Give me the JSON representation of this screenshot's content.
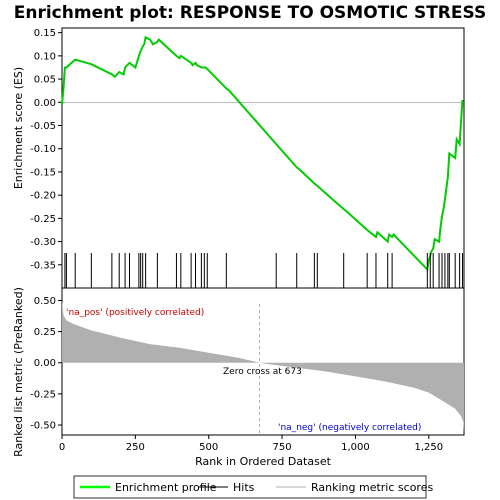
{
  "chart_data": {
    "type": "line",
    "title": "Enrichment plot: RESPONSE TO OSMOTIC STRESS",
    "xlabel": "Rank in Ordered Dataset",
    "es_panel": {
      "ylabel": "Enrichment score (ES)",
      "ylim": [
        -0.4,
        0.16
      ],
      "yticks": [
        0.15,
        0.1,
        0.05,
        0.0,
        -0.05,
        -0.1,
        -0.15,
        -0.2,
        -0.25,
        -0.3,
        -0.35
      ],
      "ytick_labels": [
        "0.15",
        "0.10",
        "0.05",
        "0.00",
        "-0.05",
        "-0.10",
        "-0.15",
        "-0.20",
        "-0.25",
        "-0.30",
        "-0.35"
      ],
      "line_color": "#00cc00",
      "series": [
        {
          "name": "Enrichment profile",
          "x": [
            0,
            5,
            10,
            15,
            45,
            100,
            170,
            180,
            195,
            210,
            215,
            230,
            250,
            262,
            268,
            275,
            280,
            285,
            300,
            310,
            325,
            330,
            390,
            400,
            405,
            410,
            440,
            445,
            455,
            460,
            475,
            485,
            490,
            495,
            560,
            570,
            730,
            800,
            810,
            860,
            870,
            960,
            970,
            1040,
            1050,
            1070,
            1075,
            1110,
            1115,
            1125,
            1130,
            1245,
            1250,
            1255,
            1260,
            1265,
            1270,
            1285,
            1290,
            1295,
            1300,
            1305,
            1310,
            1315,
            1320,
            1340,
            1345,
            1355,
            1360,
            1365
          ],
          "y": [
            -0.005,
            0.03,
            0.075,
            0.075,
            0.092,
            0.082,
            0.06,
            0.055,
            0.065,
            0.06,
            0.075,
            0.085,
            0.075,
            0.1,
            0.11,
            0.12,
            0.125,
            0.14,
            0.135,
            0.125,
            0.13,
            0.135,
            0.1,
            0.095,
            0.1,
            0.098,
            0.085,
            0.08,
            0.085,
            0.08,
            0.075,
            0.075,
            0.075,
            0.072,
            0.03,
            0.025,
            -0.09,
            -0.14,
            -0.145,
            -0.175,
            -0.18,
            -0.23,
            -0.235,
            -0.275,
            -0.28,
            -0.29,
            -0.28,
            -0.3,
            -0.285,
            -0.29,
            -0.285,
            -0.36,
            -0.34,
            -0.33,
            -0.32,
            -0.315,
            -0.295,
            -0.3,
            -0.27,
            -0.245,
            -0.23,
            -0.21,
            -0.185,
            -0.16,
            -0.11,
            -0.12,
            -0.08,
            -0.09,
            -0.04,
            0.005
          ]
        }
      ]
    },
    "hits": {
      "name": "Hits",
      "x": [
        10,
        15,
        45,
        100,
        170,
        195,
        215,
        230,
        262,
        268,
        275,
        285,
        325,
        390,
        405,
        440,
        455,
        475,
        485,
        495,
        560,
        730,
        800,
        860,
        870,
        960,
        1040,
        1070,
        1110,
        1125,
        1245,
        1255,
        1265,
        1285,
        1295,
        1305,
        1315,
        1320,
        1340,
        1355,
        1365
      ]
    },
    "metric_panel": {
      "ylabel": "Ranked list metric (PreRanked)",
      "ylim": [
        -0.58,
        0.6
      ],
      "yticks": [
        0.5,
        0.25,
        0.0,
        -0.25,
        -0.5
      ],
      "ytick_labels": [
        "0.50",
        "0.25",
        "0.00",
        "-0.25",
        "-0.50"
      ],
      "fill_color": "#b0b0b0",
      "profile": {
        "x": [
          0,
          5,
          15,
          40,
          100,
          200,
          300,
          400,
          500,
          600,
          673,
          700,
          800,
          900,
          1000,
          1100,
          1200,
          1250,
          1300,
          1340,
          1360,
          1368,
          1370
        ],
        "y": [
          0.5,
          0.38,
          0.34,
          0.31,
          0.26,
          0.2,
          0.15,
          0.12,
          0.08,
          0.04,
          0.0,
          -0.01,
          -0.04,
          -0.07,
          -0.11,
          -0.15,
          -0.2,
          -0.24,
          -0.31,
          -0.37,
          -0.43,
          -0.48,
          -0.56
        ]
      },
      "annotations": {
        "pos": "'na_pos' (positively correlated)",
        "neg": "'na_neg' (negatively correlated)",
        "zero_cross": "Zero cross at 673"
      }
    },
    "xlim": [
      0,
      1370
    ],
    "xticks": [
      0,
      250,
      500,
      750,
      1000,
      1250
    ],
    "xtick_labels": [
      "0",
      "250",
      "500",
      "750",
      "1,000",
      "1,250"
    ],
    "zero_cross": 673,
    "legend": {
      "placement": "bottom",
      "items": [
        {
          "label": "Enrichment profile",
          "color": "#00ff00"
        },
        {
          "label": "Hits",
          "color": "#000000"
        },
        {
          "label": "Ranking metric scores",
          "color": "#b0b0b0"
        }
      ]
    }
  }
}
